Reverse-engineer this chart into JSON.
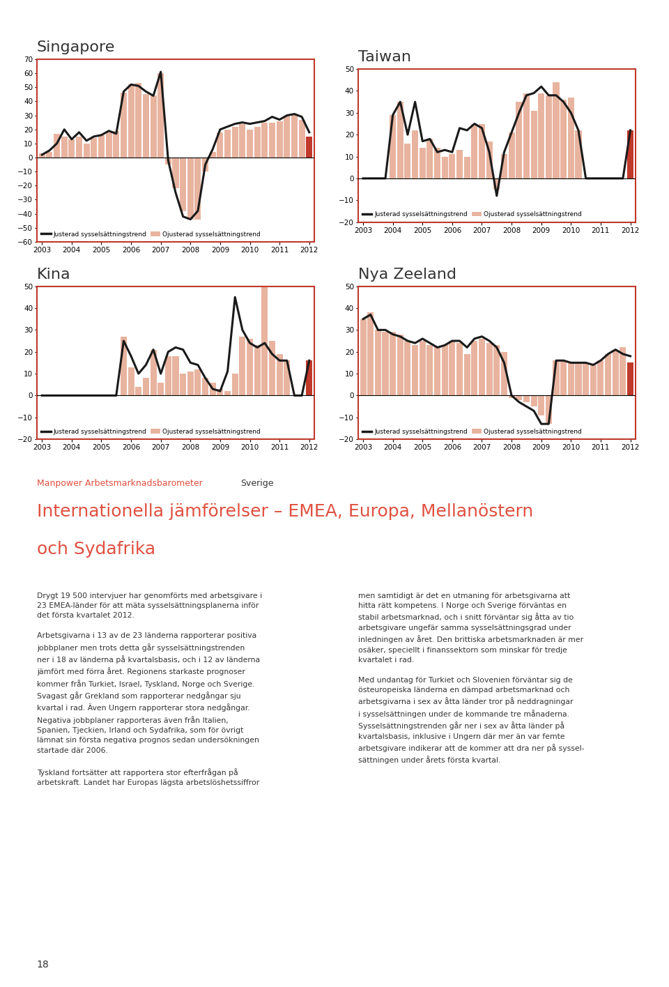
{
  "singapore": {
    "title": "Singapore",
    "ylim": [
      -60,
      70
    ],
    "yticks": [
      -60,
      -50,
      -40,
      -30,
      -20,
      -10,
      0,
      10,
      20,
      30,
      40,
      50,
      60,
      70
    ],
    "bars": [
      3,
      4,
      17,
      15,
      13,
      15,
      10,
      14,
      16,
      18,
      19,
      46,
      52,
      53,
      45,
      44,
      60,
      -5,
      -22,
      -38,
      -44,
      -44,
      -10,
      4,
      18,
      20,
      22,
      24,
      20,
      22,
      25,
      25,
      26,
      30,
      31,
      27,
      15
    ],
    "line": [
      2,
      5,
      10,
      20,
      13,
      18,
      12,
      15,
      16,
      19,
      17,
      47,
      52,
      51,
      47,
      44,
      61,
      -2,
      -25,
      -42,
      -44,
      -38,
      -5,
      6,
      20,
      22,
      24,
      25,
      24,
      25,
      26,
      29,
      27,
      30,
      31,
      29,
      18
    ],
    "n_quarters": 37,
    "last_bar_color": "#c0392b",
    "bar_color": "#e8b4a0",
    "line_color": "#1a1a1a"
  },
  "taiwan": {
    "title": "Taiwan",
    "ylim": [
      -20,
      50
    ],
    "yticks": [
      -20,
      -10,
      0,
      10,
      20,
      30,
      40,
      50
    ],
    "bars": [
      0,
      0,
      0,
      0,
      29,
      35,
      16,
      22,
      14,
      18,
      14,
      10,
      11,
      13,
      10,
      25,
      25,
      17,
      -5,
      11,
      21,
      35,
      39,
      31,
      39,
      38,
      44,
      36,
      37,
      22,
      0,
      0,
      0,
      0,
      0,
      0,
      22
    ],
    "line": [
      0,
      0,
      0,
      0,
      29,
      35,
      20,
      35,
      17,
      18,
      12,
      13,
      12,
      23,
      22,
      25,
      23,
      12,
      -8,
      12,
      21,
      30,
      38,
      39,
      42,
      38,
      38,
      35,
      30,
      22,
      0,
      0,
      0,
      0,
      0,
      0,
      22
    ],
    "n_quarters": 37,
    "last_bar_color": "#c0392b",
    "bar_color": "#e8b4a0",
    "line_color": "#1a1a1a"
  },
  "kina": {
    "title": "Kina",
    "ylim": [
      -20,
      50
    ],
    "yticks": [
      -20,
      -10,
      0,
      10,
      20,
      30,
      40,
      50
    ],
    "bars": [
      0,
      0,
      0,
      0,
      0,
      0,
      0,
      0,
      0,
      0,
      0,
      27,
      13,
      4,
      8,
      21,
      6,
      18,
      18,
      10,
      11,
      12,
      8,
      6,
      3,
      2,
      10,
      27,
      26,
      23,
      50,
      25,
      19,
      16,
      0,
      0,
      16
    ],
    "line": [
      0,
      0,
      0,
      0,
      0,
      0,
      0,
      0,
      0,
      0,
      0,
      25,
      18,
      10,
      14,
      21,
      10,
      20,
      22,
      21,
      15,
      14,
      8,
      3,
      2,
      11,
      45,
      30,
      24,
      22,
      24,
      19,
      16,
      16,
      0,
      0,
      16
    ],
    "n_quarters": 37,
    "last_bar_color": "#c0392b",
    "bar_color": "#e8b4a0",
    "line_color": "#1a1a1a"
  },
  "nya_zeeland": {
    "title": "Nya Zeeland",
    "ylim": [
      -20,
      50
    ],
    "yticks": [
      -20,
      -10,
      0,
      10,
      20,
      30,
      40,
      50
    ],
    "bars": [
      35,
      38,
      30,
      29,
      29,
      28,
      25,
      23,
      25,
      23,
      22,
      23,
      25,
      24,
      19,
      25,
      26,
      24,
      23,
      20,
      -1,
      -2,
      -3,
      -5,
      -9,
      -13,
      16,
      16,
      15,
      15,
      15,
      14,
      16,
      19,
      21,
      22,
      15
    ],
    "line": [
      35,
      37,
      30,
      30,
      28,
      27,
      25,
      24,
      26,
      24,
      22,
      23,
      25,
      25,
      22,
      26,
      27,
      25,
      22,
      15,
      0,
      -3,
      -5,
      -7,
      -13,
      -13,
      16,
      16,
      15,
      15,
      15,
      14,
      16,
      19,
      21,
      19,
      18
    ],
    "n_quarters": 37,
    "last_bar_color": "#c0392b",
    "bar_color": "#e8b4a0",
    "line_color": "#1a1a1a"
  },
  "border_color": "#c0392b",
  "legend_line_label": "Justerad sysselsättningstrend",
  "legend_bar_label": "Ojusterad sysselsättningstrend",
  "title_fontsize": 16,
  "axis_fontsize": 7,
  "text_color": "#333333",
  "page_number": "18",
  "manpower_label": "Manpower Arbetsmarknadsbarometer",
  "sverige_label": "Sverige",
  "section_color": "#e05040",
  "section_title": "Internationella jämförelser – EMEA, Europa, Mellanöstern",
  "section_title2": "och Sydafrika",
  "background_color": "#ffffff",
  "left_col1": "Drygt 19 500 intervjuer har genomförts med arbetsgivare i\n23 EMEA-länder för att mäta sysselsättningsplanerna inför\ndet första kvartalet 2012.",
  "left_col2": "Arbetsgivarna i 13 av de 23 länderna rapporterar positiva\njobbplaner men trots detta går sysselsättningstrenden\nner i 18 av länderna på kvartalsbasis, och i 12 av länderna\njämfört med förra året. Regionens starkaste prognoser\nkommer från Turkiet, Israel, Tyskland, Norge och Sverige.\nSvagast går Grekland som rapporterar nedgångar sju\nkvartal i rad. Även Ungern rapporterar stora nedgångar.\nNegativa jobbplaner rapporteras även från Italien,\nSpanien, Tjeckien, Irland och Sydafrika, som för övrigt\nlämnat sin första negativa prognos sedan undersökningen\nstartade där 2006.",
  "left_col3": "Tyskland fortsätter att rapportera stor efterfrågan på\narbetskraft. Landet har Europas lägsta arbetslöshetssiffror",
  "right_col1": "men samtidigt är det en utmaning för arbetsgivarna att\nhitta rätt kompetens. I Norge och Sverige förväntas en\nstabil arbetsmarknad, och i snitt förväntar sig åtta av tio\narbetsgivare ungefär samma sysselsättningsgrad under\ninledningen av året. Den brittiska arbetsmarknaden är mer\nosäker, speciellt i finanssektorn som minskar för tredje\nkvartalet i rad.",
  "right_col2": "Med undantag för Turkiet och Slovenien förväntar sig de\nösteuropeiska länderna en dämpad arbetsmarknad och\narbetsgivarna i sex av åtta länder tror på neddragningar\ni sysselsättningen under de kommande tre månaderna.\nSysselsättningstrenden går ner i sex av åtta länder på\nkvartalsbasis, inklusive i Ungern där mer än var femte\narbetsgivare indikerar att de kommer att dra ner på syssel-\nsättningen under årets första kvartal."
}
